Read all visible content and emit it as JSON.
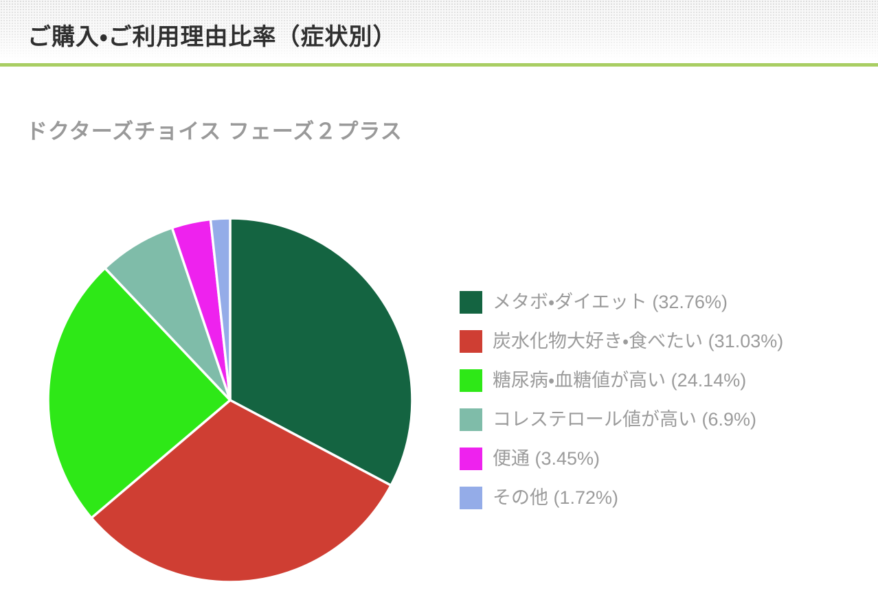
{
  "header": {
    "title": "ご購入・ご利用理由比率（症状別）"
  },
  "theme": {
    "divider_color": "#A9CE63",
    "title_color": "#2F2F2F",
    "subtitle_color": "#999999",
    "legend_text_color": "#9B9B9B",
    "slice_border_color": "#FFFFFF",
    "background_color": "#FFFFFF"
  },
  "chart_data": {
    "type": "pie",
    "title": "ドクターズチョイス フェーズ２プラス",
    "legend_position": "right",
    "start_angle_deg": 0,
    "direction": "clockwise",
    "slices": [
      {
        "label": "メタボ・ダイエット",
        "value": 32.76,
        "display_pct": "32.76",
        "color": "#146441"
      },
      {
        "label": "炭水化物大好き・食べたい",
        "value": 31.03,
        "display_pct": "31.03",
        "color": "#CF3E33"
      },
      {
        "label": "糖尿病・血糖値が高い",
        "value": 24.14,
        "display_pct": "24.14",
        "color": "#2EE817"
      },
      {
        "label": "コレステロール値が高い",
        "value": 6.9,
        "display_pct": "6.9",
        "color": "#7FBCA9"
      },
      {
        "label": "便通",
        "value": 3.45,
        "display_pct": "3.45",
        "color": "#EE22EE"
      },
      {
        "label": "その他",
        "value": 1.72,
        "display_pct": "1.72",
        "color": "#94ACE8"
      }
    ]
  }
}
